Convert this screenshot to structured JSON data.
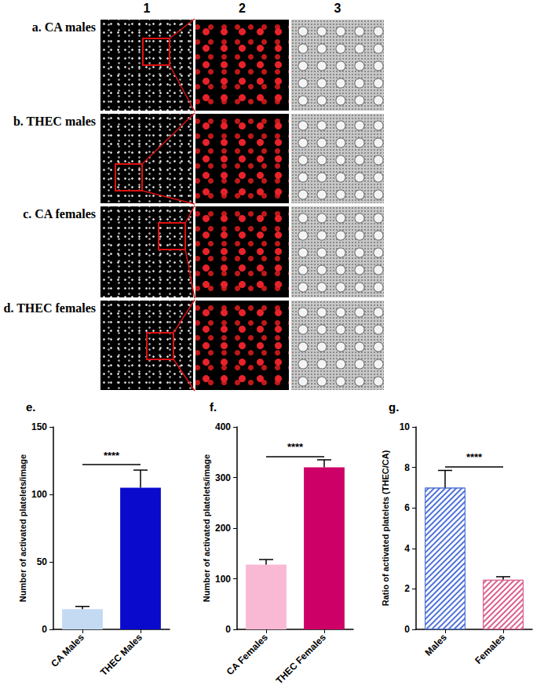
{
  "image_panels": {
    "columns": [
      "1",
      "2",
      "3"
    ],
    "rows": [
      "a. CA males",
      "b. THEC males",
      "c. CA females",
      "d. THEC females"
    ]
  },
  "chart_data": [
    {
      "type": "bar",
      "panel": "e.",
      "y_label": "Number of activated platelets/image",
      "categories": [
        "CA Males",
        "THEC Males"
      ],
      "values": [
        15,
        105
      ],
      "errors": [
        2,
        13
      ],
      "colors": [
        "#c4daf2",
        "#0a0acc"
      ],
      "ylim": [
        0,
        150
      ],
      "yticks": [
        0,
        50,
        100,
        150
      ],
      "annotation": {
        "text": "****",
        "y": 122
      },
      "grid": false
    },
    {
      "type": "bar",
      "panel": "f.",
      "y_label": "Number of activated platelets/image",
      "categories": [
        "CA Females",
        "THEC Females"
      ],
      "values": [
        128,
        320
      ],
      "errors": [
        10,
        15
      ],
      "colors": [
        "#f9b8d4",
        "#cc0066"
      ],
      "ylim": [
        0,
        400
      ],
      "yticks": [
        0,
        100,
        200,
        300,
        400
      ],
      "annotation": {
        "text": "****",
        "y": 342
      },
      "grid": false
    },
    {
      "type": "bar",
      "panel": "g.",
      "y_label": "Ratio of activated platelets (THEC/CA)",
      "categories": [
        "Males",
        "Females"
      ],
      "values": [
        7.0,
        2.45
      ],
      "errors": [
        0.85,
        0.15
      ],
      "colors": [
        "#4f72d6",
        "#d9608e"
      ],
      "ylim": [
        0,
        10
      ],
      "yticks": [
        0,
        2,
        4,
        6,
        8,
        10
      ],
      "annotation": {
        "text": "****",
        "y": 8.05
      },
      "marker": "hatch",
      "grid": false
    }
  ]
}
